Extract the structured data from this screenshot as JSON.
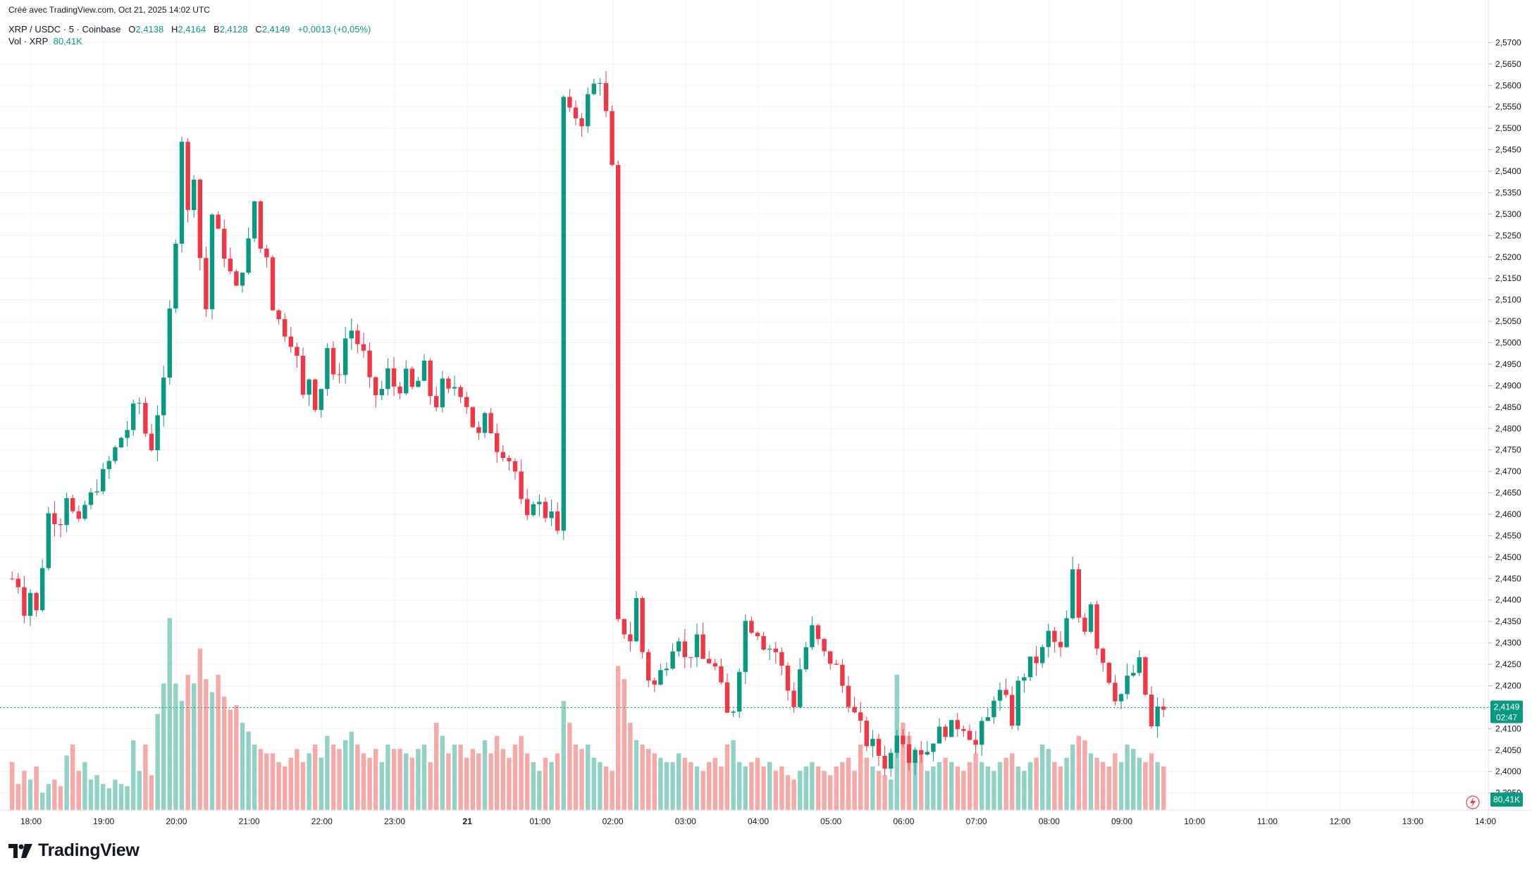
{
  "header": {
    "created": "Créé avec TradingView.com, Oct 21, 2025 14:02 UTC",
    "symbol": "XRP / USDC · 5 · Coinbase",
    "o_label": "O",
    "o_value": "2,4138",
    "h_label": "H",
    "h_value": "2,4164",
    "b_label": "B",
    "b_value": "2,4128",
    "c_label": "C",
    "c_value": "2,4149",
    "change": "+0,0013 (+0,05%)",
    "vol_label": "Vol · XRP",
    "vol_value": "80,41K"
  },
  "price_badge": {
    "price": "2,4149",
    "countdown": "02:47"
  },
  "volume_badge": "80,41K",
  "brand": "TradingView",
  "colors": {
    "up": "#089981",
    "down": "#f23645",
    "up_vol": "#92d2c6",
    "down_vol": "#f7a9a7",
    "grid": "#f0f3fa",
    "text": "#131722"
  },
  "chart_data": {
    "type": "candlestick",
    "interval_minutes": 5,
    "y_ticks": [
      "2,3950",
      "2,4000",
      "2,4050",
      "2,4100",
      "2,4150",
      "2,4200",
      "2,4250",
      "2,4300",
      "2,4350",
      "2,4400",
      "2,4450",
      "2,4500",
      "2,4550",
      "2,4600",
      "2,4650",
      "2,4700",
      "2,4750",
      "2,4800",
      "2,4850",
      "2,4900",
      "2,4950",
      "2,5000",
      "2,5050",
      "2,5100",
      "2,5150",
      "2,5200",
      "2,5250",
      "2,5300",
      "2,5350",
      "2,5400",
      "2,5450",
      "2,5500",
      "2,5550",
      "2,5600",
      "2,5650",
      "2,5700"
    ],
    "x_ticks": [
      "18:00",
      "19:00",
      "20:00",
      "21:00",
      "22:00",
      "23:00",
      "21",
      "01:00",
      "02:00",
      "03:00",
      "04:00",
      "05:00",
      "06:00",
      "07:00",
      "08:00",
      "09:00",
      "10:00",
      "11:00",
      "12:00",
      "13:00",
      "14:00"
    ],
    "ylim": [
      2.391,
      2.575
    ],
    "last_price": 2.4149,
    "path": [
      [
        0,
        2.445
      ],
      [
        1,
        2.444
      ],
      [
        2,
        2.438
      ],
      [
        3,
        2.442
      ],
      [
        4,
        2.437
      ],
      [
        6,
        2.46
      ],
      [
        8,
        2.459
      ],
      [
        9,
        2.465
      ],
      [
        10,
        2.46
      ],
      [
        11,
        2.457
      ],
      [
        12,
        2.462
      ],
      [
        13,
        2.464
      ],
      [
        14,
        2.467
      ],
      [
        15,
        2.469
      ],
      [
        16,
        2.472
      ],
      [
        17,
        2.475
      ],
      [
        18,
        2.478
      ],
      [
        19,
        2.48
      ],
      [
        20,
        2.484
      ],
      [
        21,
        2.486
      ],
      [
        22,
        2.479
      ],
      [
        23,
        2.476
      ],
      [
        24,
        2.484
      ],
      [
        25,
        2.49
      ],
      [
        26,
        2.507
      ],
      [
        27,
        2.525
      ],
      [
        28,
        2.548
      ],
      [
        29,
        2.53
      ],
      [
        30,
        2.54
      ],
      [
        31,
        2.52
      ],
      [
        32,
        2.508
      ],
      [
        33,
        2.53
      ],
      [
        34,
        2.525
      ],
      [
        35,
        2.521
      ],
      [
        36,
        2.516
      ],
      [
        37,
        2.512
      ],
      [
        38,
        2.518
      ],
      [
        39,
        2.523
      ],
      [
        40,
        2.533
      ],
      [
        41,
        2.522
      ],
      [
        42,
        2.521
      ],
      [
        43,
        2.509
      ],
      [
        44,
        2.505
      ],
      [
        45,
        2.503
      ],
      [
        46,
        2.501
      ],
      [
        47,
        2.496
      ],
      [
        48,
        2.487
      ],
      [
        49,
        2.492
      ],
      [
        50,
        2.486
      ],
      [
        51,
        2.49
      ],
      [
        52,
        2.499
      ],
      [
        53,
        2.491
      ],
      [
        54,
        2.494
      ],
      [
        55,
        2.501
      ],
      [
        56,
        2.503
      ],
      [
        57,
        2.5
      ],
      [
        58,
        2.497
      ],
      [
        59,
        2.49
      ],
      [
        60,
        2.488
      ],
      [
        61,
        2.489
      ],
      [
        62,
        2.493
      ],
      [
        63,
        2.49
      ],
      [
        64,
        2.49
      ],
      [
        65,
        2.492
      ],
      [
        66,
        2.489
      ],
      [
        67,
        2.491
      ],
      [
        68,
        2.494
      ],
      [
        69,
        2.488
      ],
      [
        70,
        2.486
      ],
      [
        71,
        2.49
      ],
      [
        72,
        2.488
      ],
      [
        73,
        2.49
      ],
      [
        74,
        2.489
      ],
      [
        75,
        2.486
      ],
      [
        76,
        2.481
      ],
      [
        77,
        2.478
      ],
      [
        78,
        2.482
      ],
      [
        79,
        2.48
      ],
      [
        80,
        2.476
      ],
      [
        81,
        2.475
      ],
      [
        82,
        2.473
      ],
      [
        83,
        2.47
      ],
      [
        84,
        2.462
      ],
      [
        85,
        2.458
      ],
      [
        86,
        2.464
      ],
      [
        87,
        2.462
      ],
      [
        88,
        2.46
      ],
      [
        89,
        2.462
      ],
      [
        90,
        2.455
      ],
      [
        91,
        2.557
      ],
      [
        92,
        2.553
      ],
      [
        93,
        2.553
      ],
      [
        94,
        2.552
      ],
      [
        95,
        2.557
      ],
      [
        96,
        2.56
      ],
      [
        97,
        2.562
      ],
      [
        98,
        2.553
      ],
      [
        99,
        2.54
      ],
      [
        100,
        2.434
      ],
      [
        101,
        2.433
      ],
      [
        102,
        2.431
      ],
      [
        103,
        2.44
      ],
      [
        104,
        2.428
      ],
      [
        105,
        2.422
      ],
      [
        106,
        2.42
      ],
      [
        107,
        2.423
      ],
      [
        108,
        2.426
      ],
      [
        109,
        2.43
      ],
      [
        110,
        2.432
      ],
      [
        111,
        2.426
      ],
      [
        112,
        2.428
      ],
      [
        113,
        2.43
      ],
      [
        114,
        2.426
      ],
      [
        115,
        2.426
      ],
      [
        116,
        2.424
      ],
      [
        117,
        2.419
      ],
      [
        118,
        2.413
      ],
      [
        119,
        2.415
      ],
      [
        120,
        2.425
      ],
      [
        121,
        2.435
      ],
      [
        122,
        2.434
      ],
      [
        123,
        2.433
      ],
      [
        124,
        2.43
      ],
      [
        125,
        2.429
      ],
      [
        126,
        2.428
      ],
      [
        127,
        2.424
      ],
      [
        128,
        2.419
      ],
      [
        129,
        2.416
      ],
      [
        130,
        2.424
      ],
      [
        131,
        2.429
      ],
      [
        132,
        2.433
      ],
      [
        133,
        2.43
      ],
      [
        134,
        2.427
      ],
      [
        135,
        2.426
      ],
      [
        136,
        2.424
      ],
      [
        137,
        2.42
      ],
      [
        138,
        2.417
      ],
      [
        139,
        2.413
      ],
      [
        140,
        2.41
      ],
      [
        141,
        2.407
      ],
      [
        142,
        2.406
      ],
      [
        143,
        2.404
      ],
      [
        144,
        2.402
      ],
      [
        145,
        2.404
      ],
      [
        146,
        2.41
      ],
      [
        147,
        2.408
      ],
      [
        148,
        2.404
      ],
      [
        149,
        2.406
      ],
      [
        150,
        2.405
      ],
      [
        151,
        2.405
      ],
      [
        152,
        2.408
      ],
      [
        153,
        2.409
      ],
      [
        154,
        2.41
      ],
      [
        155,
        2.41
      ],
      [
        156,
        2.411
      ],
      [
        157,
        2.411
      ],
      [
        158,
        2.409
      ],
      [
        159,
        2.406
      ],
      [
        160,
        2.41
      ],
      [
        161,
        2.412
      ],
      [
        162,
        2.418
      ],
      [
        163,
        2.418
      ],
      [
        164,
        2.416
      ],
      [
        165,
        2.412
      ],
      [
        166,
        2.42
      ],
      [
        167,
        2.423
      ],
      [
        168,
        2.425
      ],
      [
        169,
        2.426
      ],
      [
        170,
        2.428
      ],
      [
        171,
        2.432
      ],
      [
        172,
        2.43
      ],
      [
        173,
        2.428
      ],
      [
        174,
        2.435
      ],
      [
        175,
        2.446
      ],
      [
        176,
        2.436
      ],
      [
        177,
        2.434
      ],
      [
        178,
        2.44
      ],
      [
        179,
        2.43
      ],
      [
        180,
        2.426
      ],
      [
        181,
        2.422
      ],
      [
        182,
        2.418
      ],
      [
        183,
        2.418
      ],
      [
        184,
        2.421
      ],
      [
        185,
        2.423
      ],
      [
        186,
        2.425
      ],
      [
        187,
        2.418
      ],
      [
        188,
        2.41
      ],
      [
        189,
        2.414
      ],
      [
        190,
        2.415
      ]
    ],
    "volume_max_note": "relative volume bars, no printed scale",
    "volume": [
      22,
      12,
      18,
      14,
      20,
      8,
      12,
      14,
      11,
      25,
      30,
      18,
      22,
      14,
      16,
      12,
      10,
      14,
      12,
      11,
      32,
      18,
      30,
      16,
      44,
      58,
      88,
      58,
      50,
      62,
      58,
      74,
      60,
      54,
      62,
      52,
      46,
      48,
      40,
      36,
      30,
      28,
      26,
      26,
      22,
      20,
      24,
      28,
      22,
      26,
      30,
      24,
      34,
      30,
      28,
      32,
      36,
      30,
      26,
      24,
      28,
      22,
      30,
      28,
      28,
      26,
      24,
      28,
      30,
      22,
      40,
      34,
      26,
      30,
      30,
      24,
      28,
      26,
      32,
      26,
      34,
      28,
      24,
      30,
      34,
      26,
      22,
      18,
      24,
      22,
      26,
      50,
      40,
      30,
      28,
      30,
      24,
      22,
      20,
      18,
      66,
      60,
      40,
      32,
      30,
      28,
      26,
      24,
      22,
      22,
      26,
      24,
      22,
      20,
      18,
      22,
      24,
      20,
      30,
      32,
      22,
      20,
      22,
      24,
      20,
      22,
      18,
      20,
      16,
      14,
      18,
      20,
      22,
      20,
      18,
      16,
      20,
      22,
      24,
      18,
      30,
      24,
      20,
      18,
      16,
      14,
      62,
      40,
      34,
      28,
      26,
      18,
      20,
      22,
      24,
      22,
      20,
      18,
      22,
      26,
      22,
      20,
      18,
      22,
      24,
      26,
      20,
      18,
      22,
      24,
      30,
      28,
      22,
      20,
      24,
      30,
      34,
      32,
      26,
      24,
      22,
      20,
      26,
      22,
      30,
      28,
      24,
      22,
      26,
      22,
      20
    ]
  }
}
